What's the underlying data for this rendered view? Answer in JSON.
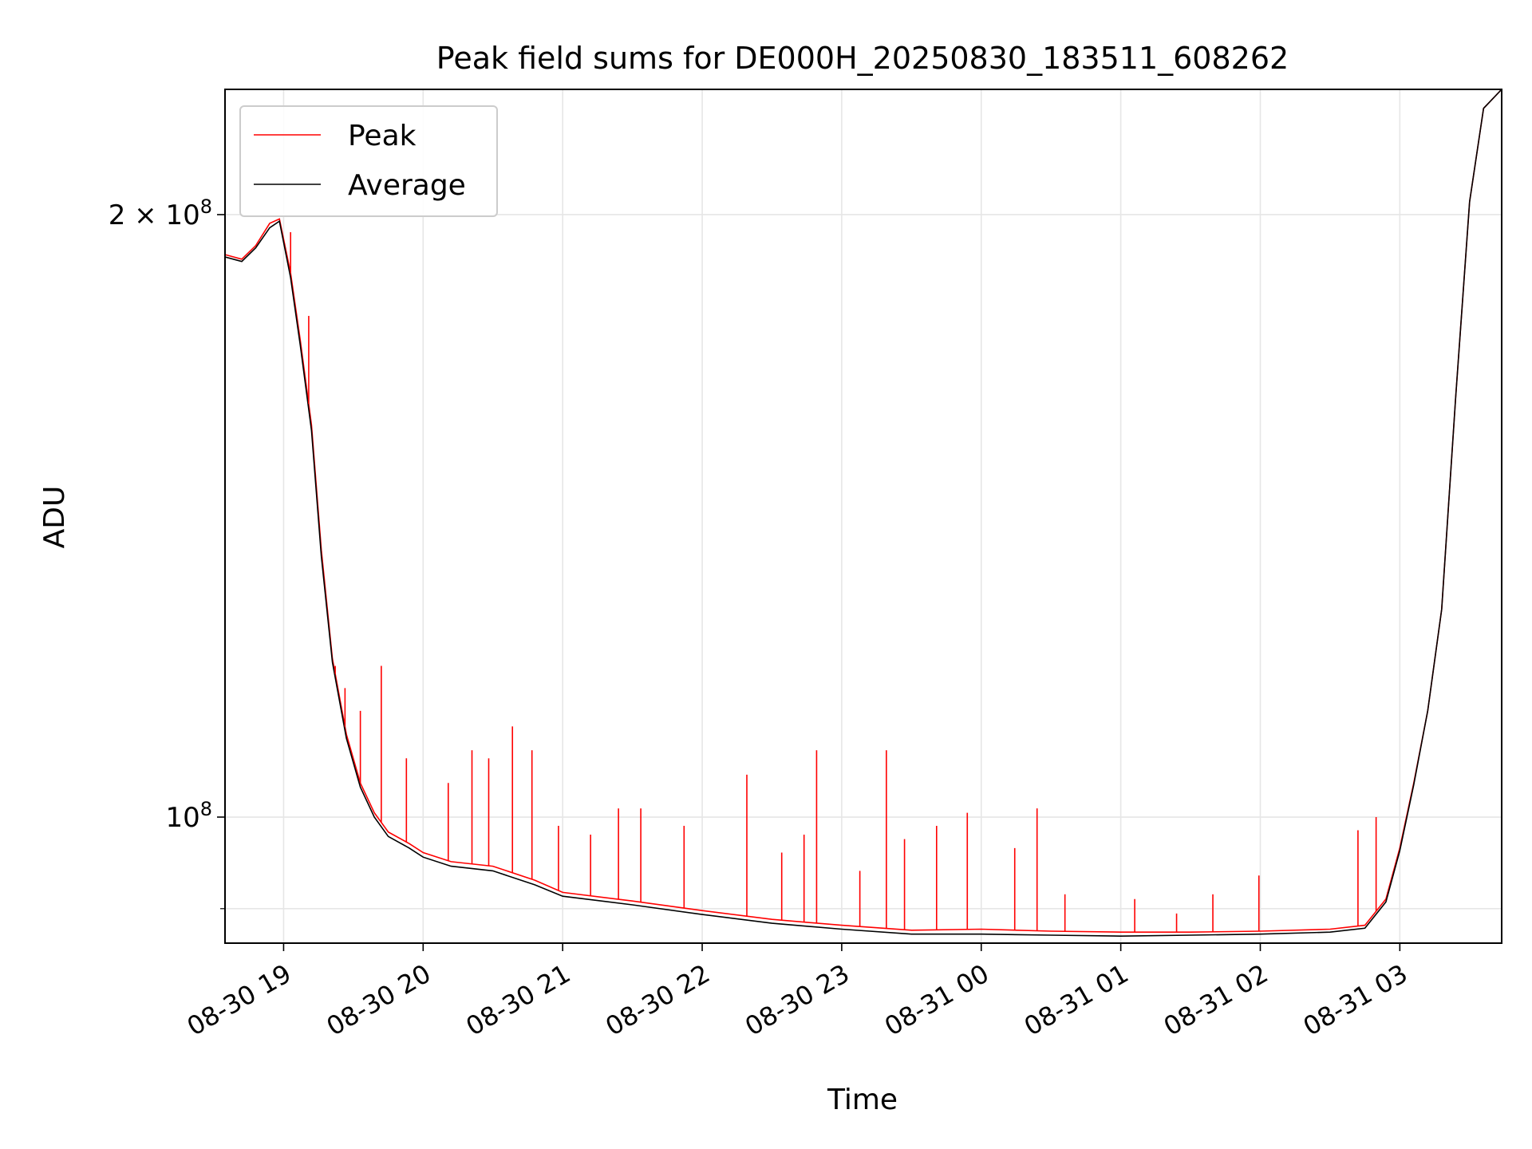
{
  "chart_data": {
    "type": "line",
    "title": "Peak field sums for DE000H_20250830_183511_608262",
    "xlabel": "Time",
    "ylabel": "ADU",
    "yscale": "log",
    "grid": true,
    "legend_position": "upper-left",
    "xlim": [
      18.58,
      27.73
    ],
    "ylim": [
      86500000,
      231000000
    ],
    "x_unit": "hours",
    "x_ticks": [
      {
        "x": 19,
        "label": "08-30 19"
      },
      {
        "x": 20,
        "label": "08-30 20"
      },
      {
        "x": 21,
        "label": "08-30 21"
      },
      {
        "x": 22,
        "label": "08-30 22"
      },
      {
        "x": 23,
        "label": "08-30 23"
      },
      {
        "x": 24,
        "label": "08-31 00"
      },
      {
        "x": 25,
        "label": "08-31 01"
      },
      {
        "x": 26,
        "label": "08-31 02"
      },
      {
        "x": 27,
        "label": "08-31 03"
      }
    ],
    "y_ticks": [
      {
        "y": 100000000,
        "base": "10",
        "exp": "8",
        "prefix": ""
      },
      {
        "y": 200000000,
        "base": "10",
        "exp": "8",
        "prefix": "2 × "
      }
    ],
    "y_minor_ticks": [
      90000000
    ],
    "x": [
      18.58,
      18.7,
      18.8,
      18.9,
      18.97,
      19.05,
      19.12,
      19.2,
      19.27,
      19.35,
      19.45,
      19.55,
      19.65,
      19.75,
      19.9,
      20.0,
      20.2,
      20.5,
      20.8,
      21.0,
      21.5,
      22.0,
      22.5,
      23.0,
      23.5,
      24.0,
      24.5,
      25.0,
      25.5,
      26.0,
      26.5,
      26.75,
      26.9,
      27.0,
      27.1,
      27.2,
      27.3,
      27.4,
      27.5,
      27.6,
      27.73
    ],
    "series": [
      {
        "name": "Peak",
        "color": "#ff0000",
        "values": [
          191000000,
          190000000,
          193000000,
          198000000,
          199000000,
          187000000,
          173000000,
          157000000,
          136000000,
          120000000,
          110000000,
          104000000,
          100500000,
          98300000,
          97000000,
          96000000,
          95000000,
          94500000,
          93000000,
          91700000,
          90800000,
          89800000,
          88900000,
          88300000,
          87800000,
          87900000,
          87700000,
          87600000,
          87600000,
          87700000,
          87900000,
          88300000,
          91000000,
          96500000,
          104000000,
          113000000,
          127000000,
          162000000,
          203000000,
          226000000,
          231000000
        ]
      },
      {
        "name": "Average",
        "color": "#000000",
        "values": [
          190500000,
          189500000,
          192500000,
          197000000,
          198500000,
          186000000,
          172000000,
          156000000,
          135000000,
          119500000,
          109500000,
          103500000,
          100000000,
          97800000,
          96500000,
          95500000,
          94500000,
          94000000,
          92500000,
          91300000,
          90400000,
          89400000,
          88500000,
          87900000,
          87400000,
          87400000,
          87300000,
          87200000,
          87300000,
          87400000,
          87600000,
          88000000,
          90700000,
          96200000,
          103800000,
          113000000,
          127000000,
          162000000,
          203000000,
          226000000,
          231000000
        ]
      }
    ],
    "peak_spikes": [
      {
        "x": 19.05,
        "y": 196000000
      },
      {
        "x": 19.18,
        "y": 178000000
      },
      {
        "x": 19.37,
        "y": 119000000
      },
      {
        "x": 19.44,
        "y": 116000000
      },
      {
        "x": 19.55,
        "y": 113000000
      },
      {
        "x": 19.7,
        "y": 119000000
      },
      {
        "x": 19.88,
        "y": 107000000
      },
      {
        "x": 20.18,
        "y": 104000000
      },
      {
        "x": 20.35,
        "y": 108000000
      },
      {
        "x": 20.47,
        "y": 107000000
      },
      {
        "x": 20.64,
        "y": 111000000
      },
      {
        "x": 20.78,
        "y": 108000000
      },
      {
        "x": 20.97,
        "y": 99000000
      },
      {
        "x": 21.2,
        "y": 98000000
      },
      {
        "x": 21.4,
        "y": 101000000
      },
      {
        "x": 21.56,
        "y": 101000000
      },
      {
        "x": 21.87,
        "y": 99000000
      },
      {
        "x": 22.32,
        "y": 105000000
      },
      {
        "x": 22.57,
        "y": 96000000
      },
      {
        "x": 22.73,
        "y": 98000000
      },
      {
        "x": 22.82,
        "y": 108000000
      },
      {
        "x": 23.13,
        "y": 94000000
      },
      {
        "x": 23.32,
        "y": 108000000
      },
      {
        "x": 23.45,
        "y": 97500000
      },
      {
        "x": 23.68,
        "y": 99000000
      },
      {
        "x": 23.9,
        "y": 100500000
      },
      {
        "x": 24.24,
        "y": 96500000
      },
      {
        "x": 24.4,
        "y": 101000000
      },
      {
        "x": 24.6,
        "y": 91500000
      },
      {
        "x": 25.1,
        "y": 91000000
      },
      {
        "x": 25.4,
        "y": 89500000
      },
      {
        "x": 25.66,
        "y": 91500000
      },
      {
        "x": 25.99,
        "y": 93500000
      },
      {
        "x": 26.7,
        "y": 98500000
      },
      {
        "x": 26.83,
        "y": 100000000
      }
    ]
  }
}
